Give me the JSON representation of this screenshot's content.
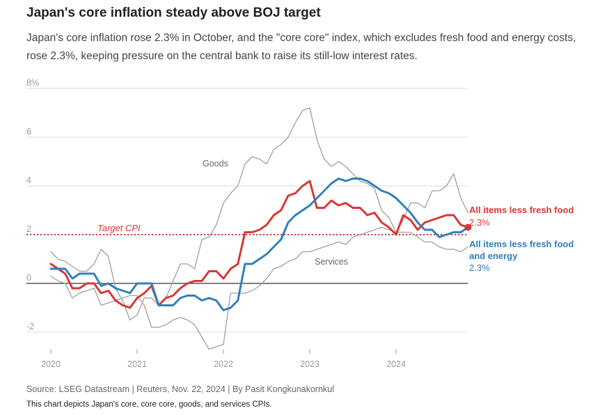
{
  "title": "Japan's core inflation steady above BOJ target",
  "subtitle": "Japan's core inflation rose 2.3% in October, and the \"core core\" index, which excludes fresh food and energy costs, rose 2.3%, keeping pressure on the central bank to raise its still-low interest rates.",
  "source": "Source: LSEG Datastream | Reuters, Nov. 22, 2024 | By Pasit Kongkunakornkul",
  "description": "This chart depicts Japan's core, core core, goods, and services CPIs.",
  "colors": {
    "core": "#d93636",
    "core_core": "#2f80b9",
    "goods": "#9e9e9e",
    "services": "#9e9e9e",
    "target": "#d93636",
    "grid": "#dddddd",
    "zero": "#333333"
  },
  "chart_data": {
    "type": "line",
    "title": "Japan's core inflation steady above BOJ target",
    "xlabel": "",
    "ylabel": "",
    "ylim": [
      -3,
      8
    ],
    "y_ticks": [
      -2,
      0,
      2,
      4,
      6,
      8
    ],
    "y_tick_labels": [
      "-2",
      "0",
      "2",
      "4",
      "6",
      "8%"
    ],
    "x_ticks": [
      2020,
      2021,
      2022,
      2023,
      2024
    ],
    "x_tick_labels": [
      "2020",
      "2021",
      "2022",
      "2023",
      "2024"
    ],
    "x_start": 2020.0,
    "x_step": 0.083333,
    "target": {
      "value": 2,
      "label": "Target CPI"
    },
    "series": [
      {
        "name": "Goods",
        "key": "goods",
        "width": 1.3,
        "label": "Goods",
        "values": [
          1.3,
          1.0,
          0.9,
          0.7,
          0.5,
          0.5,
          0.8,
          1.4,
          1.1,
          -0.2,
          -0.7,
          -1.5,
          -1.3,
          -0.6,
          -0.6,
          -0.9,
          -0.6,
          0.1,
          0.8,
          0.8,
          0.6,
          1.8,
          1.9,
          2.4,
          3.3,
          3.7,
          4.0,
          4.9,
          5.2,
          5.1,
          4.9,
          5.5,
          5.7,
          6.0,
          6.6,
          7.1,
          7.2,
          5.9,
          5.1,
          4.8,
          5.0,
          4.8,
          4.5,
          4.2,
          4.1,
          3.9,
          3.0,
          2.7,
          2.1,
          2.6,
          3.3,
          3.3,
          3.1,
          3.8,
          3.8,
          4.0,
          4.5,
          3.5,
          2.9
        ]
      },
      {
        "name": "Services",
        "key": "services",
        "width": 1.3,
        "label": "Services",
        "values": [
          0.3,
          0.1,
          0.0,
          -0.6,
          -0.4,
          -0.3,
          -0.2,
          -0.9,
          -0.8,
          -0.7,
          -0.6,
          -0.5,
          -0.5,
          -0.9,
          -1.8,
          -1.8,
          -1.7,
          -1.5,
          -1.4,
          -1.5,
          -1.7,
          -2.2,
          -2.7,
          -2.6,
          -2.5,
          -0.4,
          -0.4,
          -0.4,
          -0.3,
          -0.1,
          0.2,
          0.6,
          0.7,
          0.9,
          1.0,
          1.3,
          1.3,
          1.4,
          1.5,
          1.6,
          1.7,
          1.6,
          1.9,
          2.0,
          2.1,
          2.2,
          2.3,
          2.2,
          2.1,
          2.1,
          2.1,
          1.9,
          1.7,
          1.7,
          1.5,
          1.4,
          1.4,
          1.3,
          1.5
        ]
      },
      {
        "name": "All items less fresh food",
        "key": "core",
        "width": 3,
        "label": "All items less fresh food",
        "end_label": "2.3%",
        "values": [
          0.8,
          0.6,
          0.4,
          -0.2,
          -0.2,
          0.0,
          0.0,
          -0.4,
          -0.3,
          -0.7,
          -0.9,
          -1.0,
          -0.6,
          -0.4,
          -0.1,
          -0.9,
          -0.6,
          -0.5,
          -0.2,
          0.0,
          0.1,
          0.1,
          0.5,
          0.5,
          0.2,
          0.6,
          0.8,
          2.1,
          2.1,
          2.2,
          2.4,
          2.8,
          3.0,
          3.6,
          3.7,
          4.0,
          4.2,
          3.1,
          3.1,
          3.4,
          3.2,
          3.3,
          3.1,
          3.1,
          2.8,
          2.9,
          2.5,
          2.3,
          2.0,
          2.8,
          2.6,
          2.2,
          2.5,
          2.6,
          2.7,
          2.8,
          2.8,
          2.4,
          2.3
        ]
      },
      {
        "name": "All items less fresh food and energy",
        "key": "core_core",
        "width": 3,
        "label": "All items less fresh food and energy",
        "end_label": "2.3%",
        "values": [
          0.6,
          0.6,
          0.6,
          0.2,
          0.4,
          0.4,
          0.4,
          -0.1,
          0.0,
          -0.2,
          -0.3,
          -0.4,
          0.0,
          0.0,
          0.0,
          -0.9,
          -0.9,
          -0.9,
          -0.6,
          -0.5,
          -0.5,
          -0.7,
          -0.6,
          -0.7,
          -1.1,
          -1.0,
          -0.7,
          0.8,
          0.8,
          1.0,
          1.2,
          1.5,
          1.8,
          2.5,
          2.8,
          3.0,
          3.2,
          3.5,
          3.8,
          4.1,
          4.3,
          4.2,
          4.3,
          4.3,
          4.2,
          4.0,
          3.8,
          3.7,
          3.5,
          3.2,
          2.9,
          2.5,
          2.2,
          2.2,
          1.9,
          2.0,
          2.1,
          2.1,
          2.3
        ]
      }
    ]
  }
}
